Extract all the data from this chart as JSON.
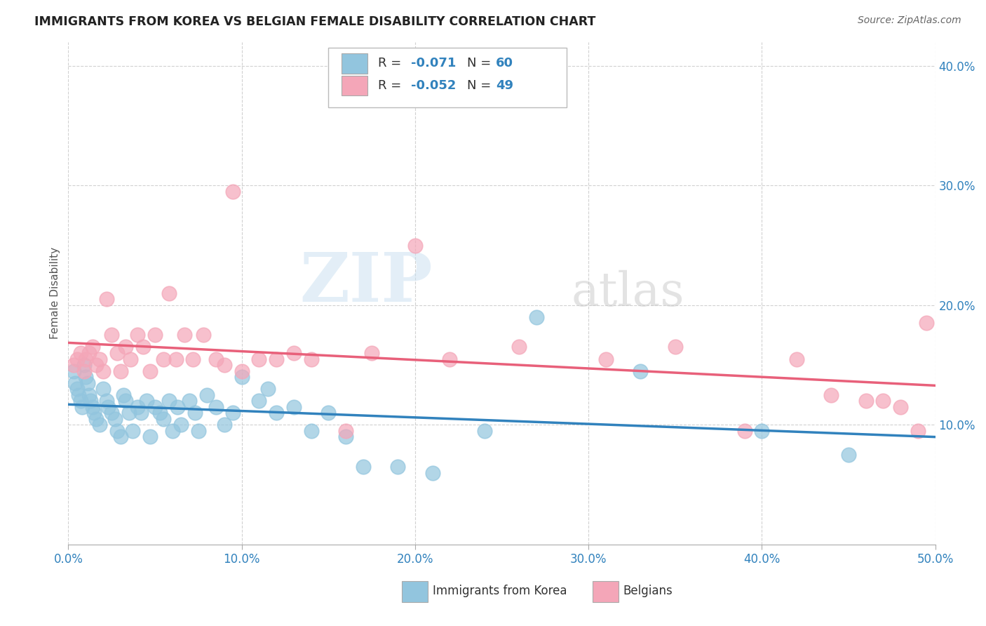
{
  "title": "IMMIGRANTS FROM KOREA VS BELGIAN FEMALE DISABILITY CORRELATION CHART",
  "source": "Source: ZipAtlas.com",
  "ylabel": "Female Disability",
  "xlim": [
    0.0,
    0.5
  ],
  "ylim": [
    0.0,
    0.42
  ],
  "blue_color": "#92c5de",
  "pink_color": "#f4a6b8",
  "blue_line_color": "#3182bd",
  "pink_line_color": "#e8607a",
  "background_color": "#ffffff",
  "watermark_zip": "ZIP",
  "watermark_atlas": "atlas",
  "legend_r1": "-0.071",
  "legend_n1": "60",
  "legend_r2": "-0.052",
  "legend_n2": "49",
  "korea_x": [
    0.003,
    0.004,
    0.005,
    0.006,
    0.007,
    0.008,
    0.009,
    0.01,
    0.011,
    0.012,
    0.013,
    0.014,
    0.015,
    0.016,
    0.018,
    0.02,
    0.022,
    0.023,
    0.025,
    0.027,
    0.028,
    0.03,
    0.032,
    0.033,
    0.035,
    0.037,
    0.04,
    0.042,
    0.045,
    0.047,
    0.05,
    0.053,
    0.055,
    0.058,
    0.06,
    0.063,
    0.065,
    0.07,
    0.073,
    0.075,
    0.08,
    0.085,
    0.09,
    0.095,
    0.1,
    0.11,
    0.115,
    0.12,
    0.13,
    0.14,
    0.15,
    0.16,
    0.17,
    0.19,
    0.21,
    0.24,
    0.27,
    0.33,
    0.4,
    0.45
  ],
  "korea_y": [
    0.145,
    0.135,
    0.13,
    0.125,
    0.12,
    0.115,
    0.15,
    0.14,
    0.135,
    0.125,
    0.12,
    0.115,
    0.11,
    0.105,
    0.1,
    0.13,
    0.12,
    0.115,
    0.11,
    0.105,
    0.095,
    0.09,
    0.125,
    0.12,
    0.11,
    0.095,
    0.115,
    0.11,
    0.12,
    0.09,
    0.115,
    0.11,
    0.105,
    0.12,
    0.095,
    0.115,
    0.1,
    0.12,
    0.11,
    0.095,
    0.125,
    0.115,
    0.1,
    0.11,
    0.14,
    0.12,
    0.13,
    0.11,
    0.115,
    0.095,
    0.11,
    0.09,
    0.065,
    0.065,
    0.06,
    0.095,
    0.19,
    0.145,
    0.095,
    0.075
  ],
  "belgian_x": [
    0.003,
    0.005,
    0.007,
    0.009,
    0.01,
    0.012,
    0.014,
    0.016,
    0.018,
    0.02,
    0.022,
    0.025,
    0.028,
    0.03,
    0.033,
    0.036,
    0.04,
    0.043,
    0.047,
    0.05,
    0.055,
    0.058,
    0.062,
    0.067,
    0.072,
    0.078,
    0.085,
    0.09,
    0.095,
    0.1,
    0.11,
    0.12,
    0.13,
    0.14,
    0.16,
    0.175,
    0.2,
    0.22,
    0.26,
    0.31,
    0.35,
    0.39,
    0.42,
    0.44,
    0.46,
    0.47,
    0.48,
    0.49,
    0.495
  ],
  "belgian_y": [
    0.15,
    0.155,
    0.16,
    0.145,
    0.155,
    0.16,
    0.165,
    0.15,
    0.155,
    0.145,
    0.205,
    0.175,
    0.16,
    0.145,
    0.165,
    0.155,
    0.175,
    0.165,
    0.145,
    0.175,
    0.155,
    0.21,
    0.155,
    0.175,
    0.155,
    0.175,
    0.155,
    0.15,
    0.295,
    0.145,
    0.155,
    0.155,
    0.16,
    0.155,
    0.095,
    0.16,
    0.25,
    0.155,
    0.165,
    0.155,
    0.165,
    0.095,
    0.155,
    0.125,
    0.12,
    0.12,
    0.115,
    0.095,
    0.185
  ]
}
